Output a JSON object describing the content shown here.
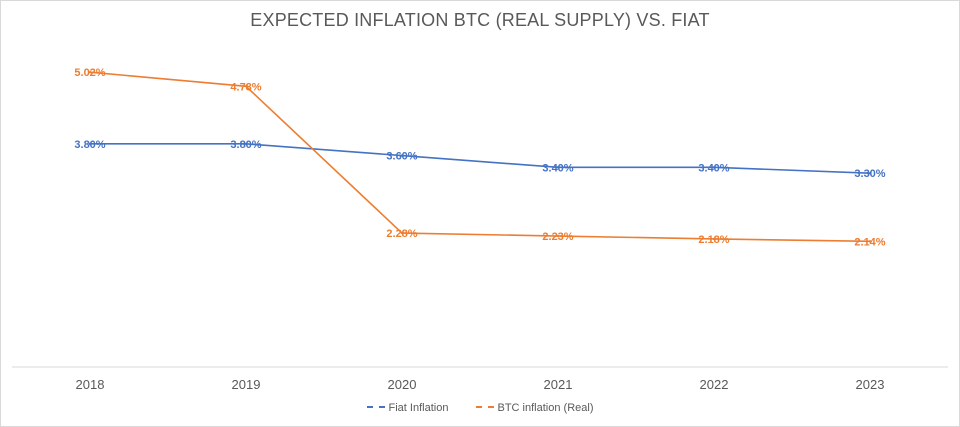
{
  "chart_data": {
    "type": "line",
    "title": "EXPECTED INFLATION BTC (REAL SUPPLY) VS. FIAT",
    "xlabel": "",
    "ylabel": "",
    "categories": [
      "2018",
      "2019",
      "2020",
      "2021",
      "2022",
      "2023"
    ],
    "ylim": [
      0,
      5.5
    ],
    "grid": false,
    "legend_position": "bottom",
    "series": [
      {
        "name": "Fiat Inflation",
        "color": "#4472c4",
        "values": [
          3.8,
          3.8,
          3.6,
          3.4,
          3.4,
          3.3
        ],
        "labels": [
          "3.80%",
          "3.80%",
          "3.60%",
          "3.40%",
          "3.40%",
          "3.30%"
        ]
      },
      {
        "name": "BTC inflation (Real)",
        "color": "#ed7d31",
        "values": [
          5.02,
          4.78,
          2.28,
          2.23,
          2.18,
          2.14
        ],
        "labels": [
          "5.02%",
          "4.78%",
          "2.28%",
          "2.23%",
          "2.18%",
          "2.14%"
        ]
      }
    ]
  }
}
